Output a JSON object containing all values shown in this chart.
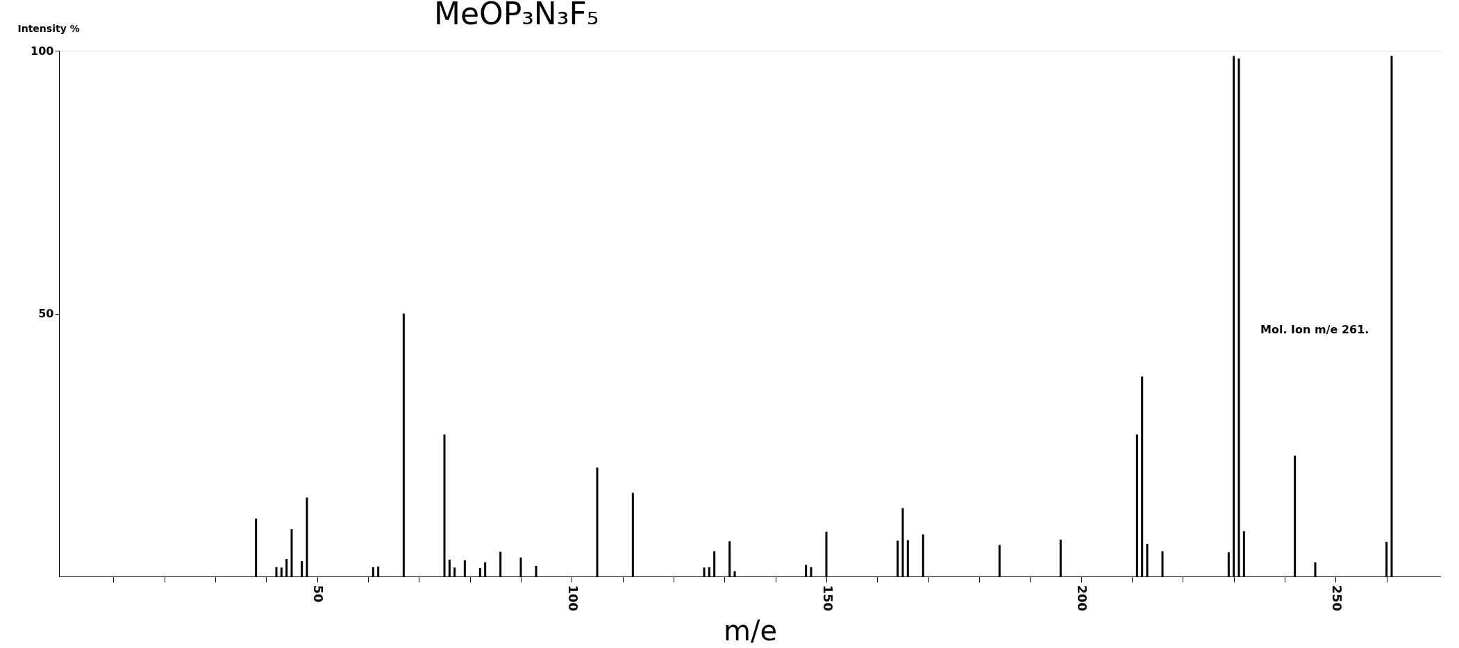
{
  "chart_data": {
    "type": "bar",
    "title": "MeOP₃N₃F₅",
    "xlabel": "m/e",
    "ylabel": "Intensity %",
    "x": [
      38,
      42,
      43,
      44,
      45,
      47,
      48,
      61,
      62,
      67,
      75,
      76,
      77,
      79,
      82,
      83,
      86,
      90,
      93,
      105,
      112,
      126,
      127,
      128,
      131,
      132,
      146,
      147,
      150,
      164,
      165,
      166,
      169,
      184,
      196,
      211,
      212,
      213,
      216,
      229,
      230,
      231,
      232,
      242,
      246,
      260,
      261
    ],
    "series": [
      {
        "color": "#000000",
        "values": [
          11,
          1.8,
          1.7,
          3.3,
          9,
          2.9,
          15,
          1.8,
          1.9,
          50,
          27,
          3.2,
          1.7,
          3.1,
          1.6,
          2.7,
          4.7,
          3.6,
          2,
          20.7,
          15.9,
          1.7,
          1.8,
          4.8,
          6.7,
          1,
          2.2,
          1.8,
          8.5,
          6.8,
          13,
          6.9,
          8,
          6,
          7,
          27,
          38,
          6.2,
          4.8,
          4.6,
          99,
          98.5,
          8.6,
          23,
          2.7,
          6.6,
          99
        ]
      }
    ],
    "xlim": [
      0,
      270
    ],
    "ylim": [
      0,
      100
    ],
    "xticks": [
      {
        "value": 10,
        "label": null
      },
      {
        "value": 20,
        "label": null
      },
      {
        "value": 30,
        "label": null
      },
      {
        "value": 40,
        "label": null
      },
      50,
      {
        "value": 60,
        "label": null
      },
      {
        "value": 70,
        "label": null
      },
      {
        "value": 80,
        "label": null
      },
      {
        "value": 90,
        "label": null
      },
      100,
      {
        "value": 110,
        "label": null
      },
      {
        "value": 120,
        "label": null
      },
      {
        "value": 130,
        "label": null
      },
      {
        "value": 140,
        "label": null
      },
      150,
      {
        "value": 160,
        "label": null
      },
      {
        "value": 170,
        "label": null
      },
      {
        "value": 180,
        "label": null
      },
      {
        "value": 190,
        "label": null
      },
      200,
      {
        "value": 210,
        "label": null
      },
      {
        "value": 220,
        "label": null
      },
      {
        "value": 230,
        "label": null
      },
      {
        "value": 240,
        "label": null
      },
      250,
      {
        "value": 260,
        "label": null
      }
    ],
    "yticks": [
      50,
      100
    ],
    "annotations": [
      "Mol. Ion m/e 261."
    ],
    "grid": false
  }
}
